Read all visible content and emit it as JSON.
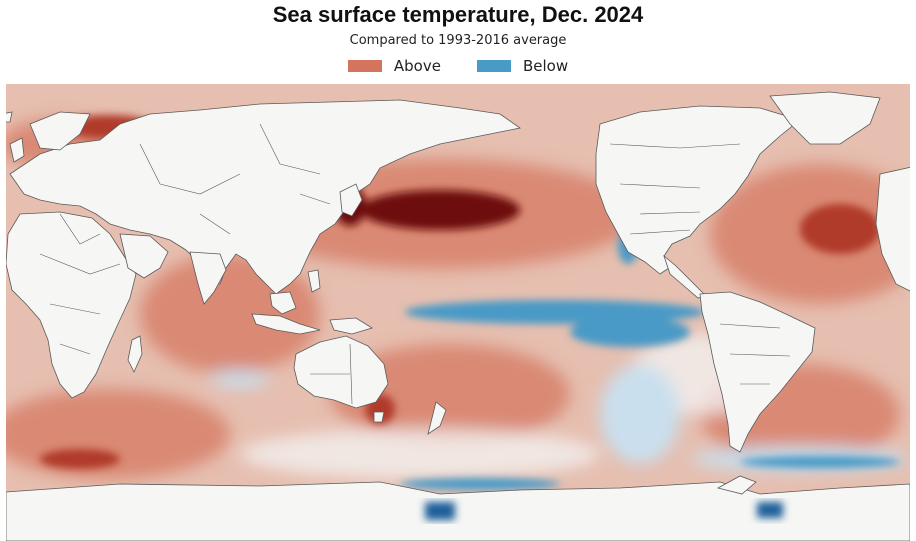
{
  "title": "Sea surface temperature, Dec. 2024",
  "subtitle": "Compared to 1993-2016 average",
  "legend": [
    {
      "label": "Above",
      "color": "#d4745c"
    },
    {
      "label": "Below",
      "color": "#4a9ac6"
    }
  ],
  "colors": {
    "ocean_base": "#e6bfb0",
    "land": "#f6f6f4",
    "border": "#5a5a5a",
    "above_light": "#ecc3b3",
    "above": "#d4745c",
    "above_strong": "#b03a2a",
    "above_extreme": "#6e0b10",
    "below_light": "#c9dfee",
    "below": "#4a9ac6",
    "below_strong": "#1c5f9a",
    "neutral": "#f2f0ef"
  }
}
